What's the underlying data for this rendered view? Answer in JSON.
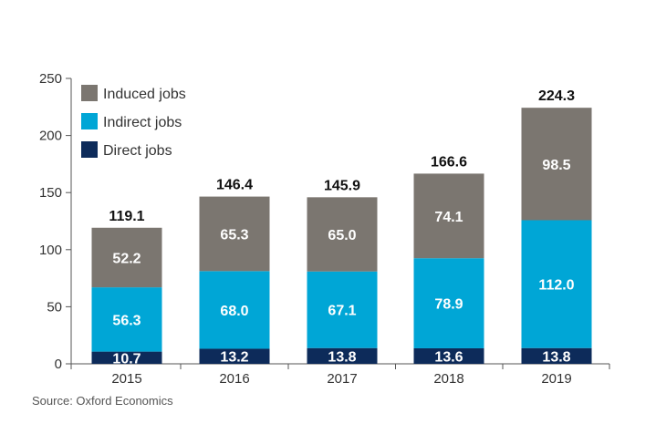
{
  "chart_data": {
    "type": "bar",
    "stacked": true,
    "categories": [
      "2015",
      "2016",
      "2017",
      "2018",
      "2019"
    ],
    "series": [
      {
        "name": "Direct jobs",
        "values": [
          10.7,
          13.2,
          13.8,
          13.6,
          13.8
        ],
        "color": "#0d2b5a"
      },
      {
        "name": "Indirect jobs",
        "values": [
          56.3,
          68.0,
          67.1,
          78.9,
          112.0
        ],
        "color": "#00a6d6"
      },
      {
        "name": "Induced jobs",
        "values": [
          52.2,
          65.3,
          65.0,
          74.1,
          98.5
        ],
        "color": "#7b7670"
      }
    ],
    "value_labels": {
      "Direct jobs": [
        "10.7",
        "13.2",
        "13.8",
        "13.6",
        "13.8"
      ],
      "Indirect jobs": [
        "56.3",
        "68.0",
        "67.1",
        "78.9",
        "112.0"
      ],
      "Induced jobs": [
        "52.2",
        "65.3",
        "65.0",
        "74.1",
        "98.5"
      ]
    },
    "totals": [
      "119.1",
      "146.4",
      "145.9",
      "166.6",
      "224.3"
    ],
    "total_values": [
      119.1,
      146.4,
      145.9,
      166.6,
      224.3
    ],
    "ylim": [
      0,
      250
    ],
    "yticks": [
      "0",
      "50",
      "100",
      "150",
      "200",
      "250"
    ],
    "ytick_values": [
      0,
      50,
      100,
      150,
      200,
      250
    ],
    "legend_order": [
      "Induced jobs",
      "Indirect jobs",
      "Direct jobs"
    ],
    "legend_position": "top-left",
    "grid": false
  },
  "source": "Source: Oxford Economics"
}
